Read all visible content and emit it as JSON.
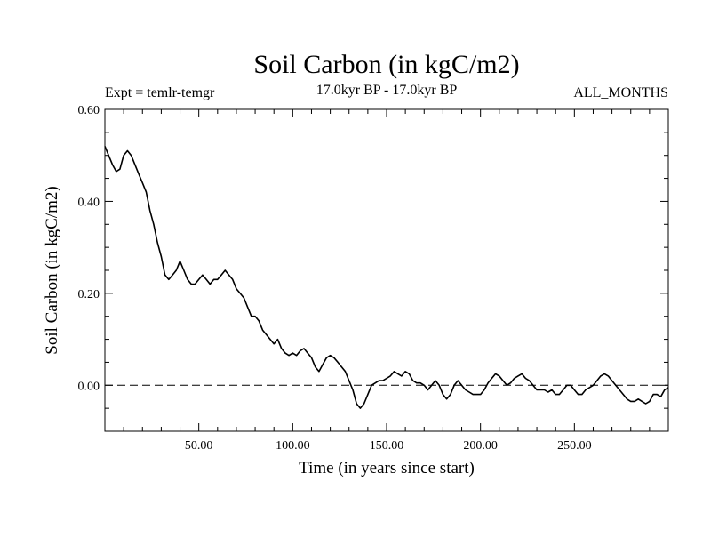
{
  "chart_data": {
    "type": "line",
    "title": "Soil Carbon (in kgC/m2)",
    "subtitle_left": "Expt = temlr-temgr",
    "subtitle_center": "17.0kyr BP - 17.0kyr BP",
    "subtitle_right": "ALL_MONTHS",
    "xlabel": "Time (in years since start)",
    "ylabel": "Soil Carbon (in kgC/m2)",
    "xlim": [
      0,
      300
    ],
    "ylim": [
      -0.1,
      0.6
    ],
    "xticks": [
      50,
      100,
      150,
      200,
      250
    ],
    "xtick_labels": [
      "50.00",
      "100.00",
      "150.00",
      "200.00",
      "250.00"
    ],
    "yticks": [
      0.0,
      0.2,
      0.4,
      0.6
    ],
    "ytick_labels": [
      "0.00",
      "0.20",
      "0.40",
      "0.60"
    ],
    "reference_line": {
      "y": 0.0,
      "style": "dashed"
    },
    "series": [
      {
        "name": "Soil Carbon",
        "color": "#000000",
        "x": [
          0,
          2,
          4,
          6,
          8,
          10,
          12,
          14,
          16,
          18,
          20,
          22,
          24,
          26,
          28,
          30,
          32,
          34,
          36,
          38,
          40,
          42,
          44,
          46,
          48,
          50,
          52,
          54,
          56,
          58,
          60,
          62,
          64,
          66,
          68,
          70,
          72,
          74,
          76,
          78,
          80,
          82,
          84,
          86,
          88,
          90,
          92,
          94,
          96,
          98,
          100,
          102,
          104,
          106,
          108,
          110,
          112,
          114,
          116,
          118,
          120,
          122,
          124,
          126,
          128,
          130,
          132,
          134,
          136,
          138,
          140,
          142,
          144,
          146,
          148,
          150,
          152,
          154,
          156,
          158,
          160,
          162,
          164,
          166,
          168,
          170,
          172,
          174,
          176,
          178,
          180,
          182,
          184,
          186,
          188,
          190,
          192,
          194,
          196,
          198,
          200,
          202,
          204,
          206,
          208,
          210,
          212,
          214,
          216,
          218,
          220,
          222,
          224,
          226,
          228,
          230,
          232,
          234,
          236,
          238,
          240,
          242,
          244,
          246,
          248,
          250,
          252,
          254,
          256,
          258,
          260,
          262,
          264,
          266,
          268,
          270,
          272,
          274,
          276,
          278,
          280,
          282,
          284,
          286,
          288,
          290,
          292,
          294,
          296,
          298,
          300
        ],
        "values": [
          0.52,
          0.5,
          0.48,
          0.465,
          0.47,
          0.5,
          0.51,
          0.5,
          0.48,
          0.46,
          0.44,
          0.42,
          0.38,
          0.35,
          0.31,
          0.28,
          0.24,
          0.23,
          0.24,
          0.25,
          0.27,
          0.25,
          0.23,
          0.22,
          0.22,
          0.23,
          0.24,
          0.23,
          0.22,
          0.23,
          0.23,
          0.24,
          0.25,
          0.24,
          0.23,
          0.21,
          0.2,
          0.19,
          0.17,
          0.15,
          0.15,
          0.14,
          0.12,
          0.11,
          0.1,
          0.09,
          0.1,
          0.08,
          0.07,
          0.065,
          0.07,
          0.065,
          0.075,
          0.08,
          0.07,
          0.06,
          0.04,
          0.03,
          0.045,
          0.06,
          0.065,
          0.06,
          0.05,
          0.04,
          0.03,
          0.01,
          -0.01,
          -0.04,
          -0.05,
          -0.04,
          -0.02,
          0.0,
          0.005,
          0.01,
          0.01,
          0.015,
          0.02,
          0.03,
          0.025,
          0.02,
          0.03,
          0.025,
          0.01,
          0.005,
          0.005,
          0.0,
          -0.01,
          0.0,
          0.01,
          0.0,
          -0.02,
          -0.03,
          -0.02,
          0.0,
          0.01,
          0.0,
          -0.01,
          -0.015,
          -0.02,
          -0.02,
          -0.02,
          -0.01,
          0.005,
          0.015,
          0.025,
          0.02,
          0.01,
          0.0,
          0.005,
          0.015,
          0.02,
          0.025,
          0.015,
          0.01,
          0.0,
          -0.01,
          -0.01,
          -0.01,
          -0.015,
          -0.01,
          -0.02,
          -0.02,
          -0.01,
          0.0,
          0.0,
          -0.01,
          -0.02,
          -0.02,
          -0.01,
          -0.005,
          0.0,
          0.01,
          0.02,
          0.025,
          0.02,
          0.01,
          0.0,
          -0.01,
          -0.02,
          -0.03,
          -0.035,
          -0.035,
          -0.03,
          -0.035,
          -0.04,
          -0.035,
          -0.02,
          -0.02,
          -0.025,
          -0.01,
          -0.005
        ]
      }
    ]
  }
}
